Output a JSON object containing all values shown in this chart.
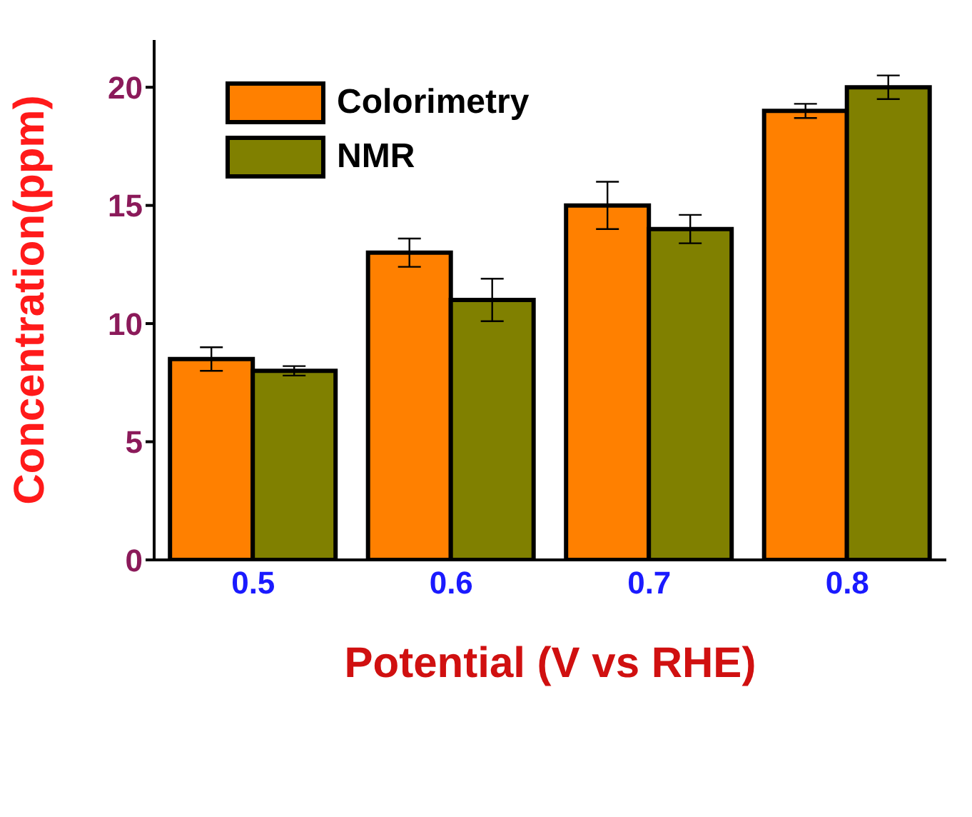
{
  "chart_data": {
    "type": "bar",
    "xlabel": "Potential (V vs RHE)",
    "ylabel": "Concentration(ppm)",
    "categories": [
      "0.5",
      "0.6",
      "0.7",
      "0.8"
    ],
    "series": [
      {
        "name": "Colorimetry",
        "color": "#ff8000",
        "values": [
          8.5,
          13,
          15,
          19
        ],
        "errors": [
          0.5,
          0.6,
          1,
          0.3
        ]
      },
      {
        "name": "NMR",
        "color": "#808000",
        "values": [
          8,
          11,
          14,
          20
        ],
        "errors": [
          0.2,
          0.9,
          0.6,
          0.5
        ]
      }
    ],
    "ylim": [
      0,
      22
    ],
    "yticks": [
      0,
      5,
      10,
      15,
      20
    ],
    "legend": "top left",
    "grid": false
  }
}
